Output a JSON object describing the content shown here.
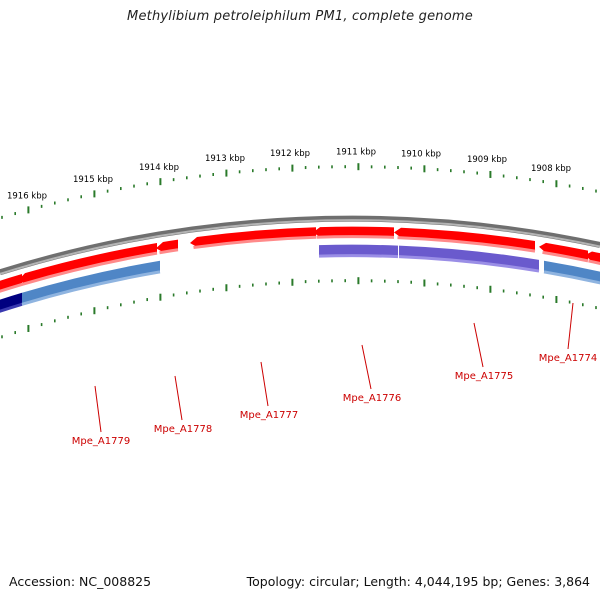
{
  "title": "Methylibium petroleiphilum PM1, complete genome",
  "footer": {
    "accession": "Accession: NC_008825",
    "summary": "Topology: circular; Length: 4,044,195 bp; Genes: 3,864"
  },
  "colors": {
    "backbone": "#8a8a8a",
    "ticks": "#2a7a2a",
    "forward_gene": "#ff0000",
    "reverse_gene_steel": "#4f86c6",
    "reverse_gene_slate": "#6a5acd",
    "reverse_gene_navy": "#000080",
    "gene_label": "#cc0000",
    "kbp_label": "#000000"
  },
  "kbp_labels": [
    "1916 kbp",
    "1915 kbp",
    "1914 kbp",
    "1913 kbp",
    "1912 kbp",
    "1911 kbp",
    "1910 kbp",
    "1909 kbp",
    "1908 kbp"
  ],
  "genes": [
    {
      "label": "Mpe_A1779"
    },
    {
      "label": "Mpe_A1778"
    },
    {
      "label": "Mpe_A1777"
    },
    {
      "label": "Mpe_A1776"
    },
    {
      "label": "Mpe_A1775"
    },
    {
      "label": "Mpe_A1774"
    }
  ]
}
